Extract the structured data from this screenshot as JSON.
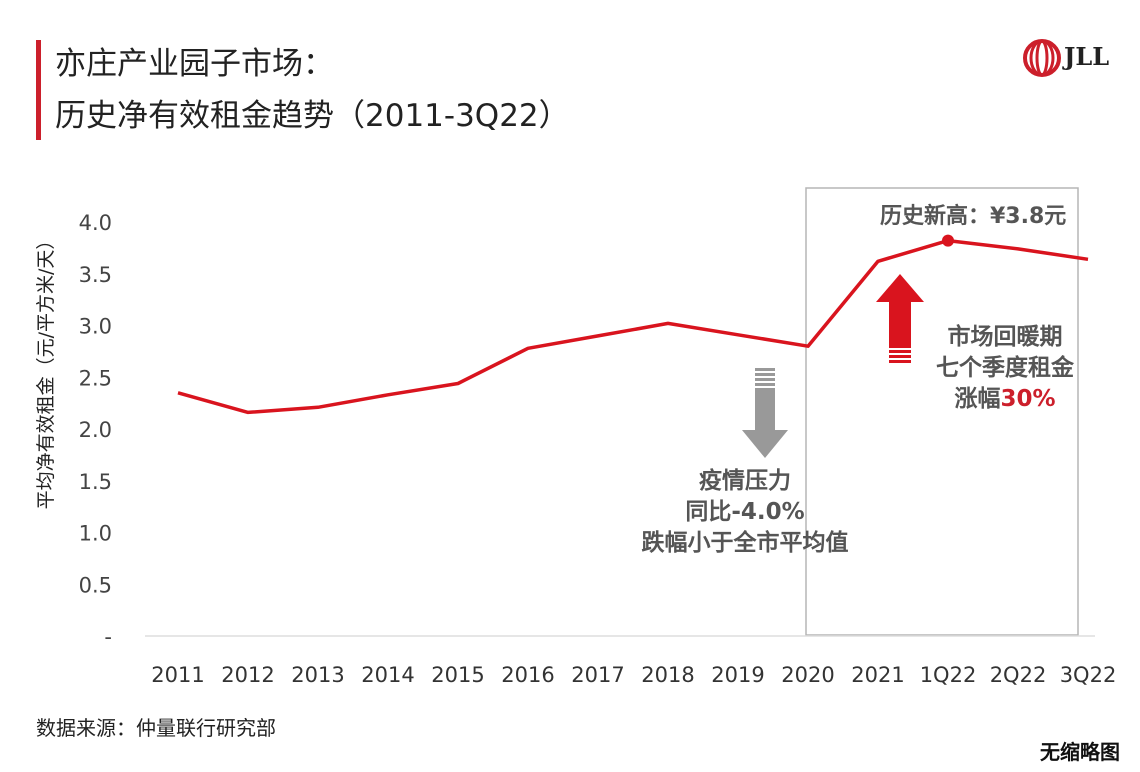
{
  "title": {
    "line1": "亦庄产业园子市场：",
    "line2": "历史净有效租金趋势（2011-3Q22）"
  },
  "logo": {
    "text": "JLL"
  },
  "colors": {
    "accent": "#cc1f2b",
    "line": "#d9141e",
    "grey": "#999999",
    "box": "#b5b5b5"
  },
  "annotations": {
    "peak_label": "历史新高：¥3.8元",
    "down_lines": [
      "疫情压力",
      "同比-4.0%",
      "跌幅小于全市平均值"
    ],
    "up_line1": "市场回暖期",
    "up_line2": "七个季度租金",
    "up_line3_prefix": "涨幅",
    "up_line3_pct": "30%"
  },
  "source": "数据来源：仲量联行研究部",
  "footer": "无缩略图",
  "chart_data": {
    "type": "line",
    "categories": [
      "2011",
      "2012",
      "2013",
      "2014",
      "2015",
      "2016",
      "2017",
      "2018",
      "2019",
      "2020",
      "2021",
      "1Q22",
      "2Q22",
      "3Q22"
    ],
    "values": [
      2.35,
      2.16,
      2.21,
      2.33,
      2.44,
      2.78,
      2.9,
      3.02,
      2.91,
      2.8,
      3.62,
      3.82,
      3.74,
      3.64
    ],
    "ylabel": "平均净有效租金（元/平方米/天）",
    "ylim": [
      0,
      4.0
    ],
    "yticks": [
      {
        "v": 0,
        "label": "-"
      },
      {
        "v": 0.5,
        "label": "0.5"
      },
      {
        "v": 1.0,
        "label": "1.0"
      },
      {
        "v": 1.5,
        "label": "1.5"
      },
      {
        "v": 2.0,
        "label": "2.0"
      },
      {
        "v": 2.5,
        "label": "2.5"
      },
      {
        "v": 3.0,
        "label": "3.0"
      },
      {
        "v": 3.5,
        "label": "3.5"
      },
      {
        "v": 4.0,
        "label": "4.0"
      }
    ],
    "highlight_point": "1Q22",
    "grid": false
  }
}
